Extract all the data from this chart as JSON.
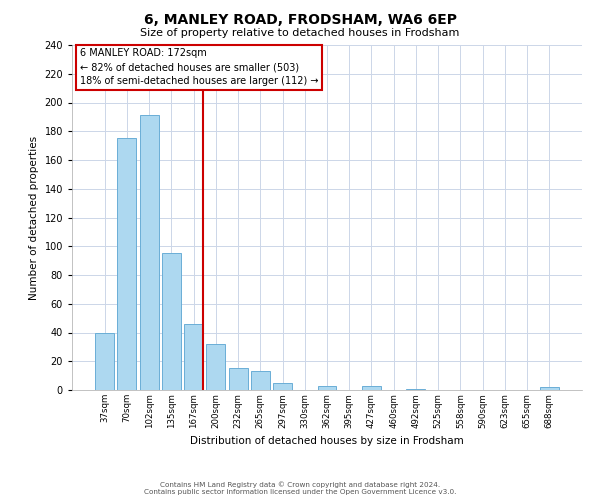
{
  "title": "6, MANLEY ROAD, FRODSHAM, WA6 6EP",
  "subtitle": "Size of property relative to detached houses in Frodsham",
  "xlabel": "Distribution of detached houses by size in Frodsham",
  "ylabel": "Number of detached properties",
  "bar_labels": [
    "37sqm",
    "70sqm",
    "102sqm",
    "135sqm",
    "167sqm",
    "200sqm",
    "232sqm",
    "265sqm",
    "297sqm",
    "330sqm",
    "362sqm",
    "395sqm",
    "427sqm",
    "460sqm",
    "492sqm",
    "525sqm",
    "558sqm",
    "590sqm",
    "623sqm",
    "655sqm",
    "688sqm"
  ],
  "bar_values": [
    40,
    175,
    191,
    95,
    46,
    32,
    15,
    13,
    5,
    0,
    3,
    0,
    3,
    0,
    1,
    0,
    0,
    0,
    0,
    0,
    2
  ],
  "bar_color": "#add8f0",
  "bar_edge_color": "#6aaed6",
  "vline_color": "#cc0000",
  "annotation_title": "6 MANLEY ROAD: 172sqm",
  "annotation_line1": "← 82% of detached houses are smaller (503)",
  "annotation_line2": "18% of semi-detached houses are larger (112) →",
  "annotation_box_color": "#ffffff",
  "annotation_box_edge": "#cc0000",
  "ylim": [
    0,
    240
  ],
  "yticks": [
    0,
    20,
    40,
    60,
    80,
    100,
    120,
    140,
    160,
    180,
    200,
    220,
    240
  ],
  "footnote1": "Contains HM Land Registry data © Crown copyright and database right 2024.",
  "footnote2": "Contains public sector information licensed under the Open Government Licence v3.0.",
  "background_color": "#ffffff",
  "grid_color": "#ccd6e8"
}
